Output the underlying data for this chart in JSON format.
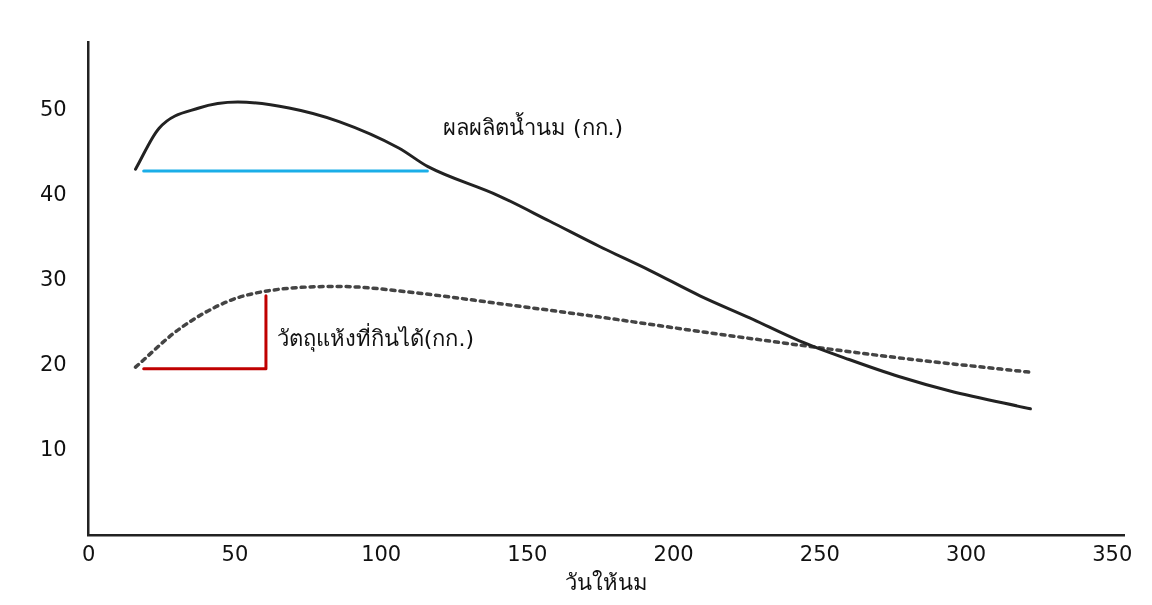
{
  "chart_data": {
    "type": "line",
    "xlabel": "วันให้นม",
    "xlim": [
      0,
      354
    ],
    "xticks": [
      0,
      50,
      100,
      150,
      200,
      250,
      300,
      350
    ],
    "ylim": [
      0,
      58
    ],
    "yticks": [
      10,
      20,
      30,
      40,
      50
    ],
    "grid": false,
    "legend": false,
    "marker": "none",
    "series": [
      {
        "name": "ผลผลิตน้ำนม (กก.)",
        "color": "#222222",
        "line_style": "solid",
        "x": [
          16,
          24,
          37.7,
          51,
          68.5,
          85.6,
          106,
          116,
          140,
          157.5,
          174.7,
          191.8,
          209,
          226,
          243,
          260,
          277,
          294.5,
          322
        ],
        "values": [
          43.1,
          47.9,
          50.3,
          51,
          50.3,
          48.7,
          45.6,
          43.4,
          40,
          37,
          34,
          31.2,
          28.2,
          25.6,
          22.9,
          20.7,
          18.7,
          17,
          14.9
        ]
      },
      {
        "name": "วัตถุแห้งที่กินได้(กก.)",
        "color": "#444444",
        "line_style": "dotted",
        "x": [
          16,
          31,
          48,
          61.6,
          85.6,
          113,
          140,
          174.7,
          209,
          243,
          277,
          322
        ],
        "values": [
          19.8,
          24.3,
          27.6,
          28.8,
          29.3,
          28.5,
          27.3,
          25.7,
          24,
          22.4,
          20.9,
          19.2
        ]
      },
      {
        "color": "#1aaee8",
        "line_style": "solid",
        "x": [
          18.8,
          115.8
        ],
        "values": [
          42.9,
          42.9
        ]
      },
      {
        "color": "#c00000",
        "line_style": "solid",
        "x": [
          18.8,
          60.6,
          60.6
        ],
        "values": [
          19.6,
          19.6,
          28.2
        ]
      }
    ]
  }
}
